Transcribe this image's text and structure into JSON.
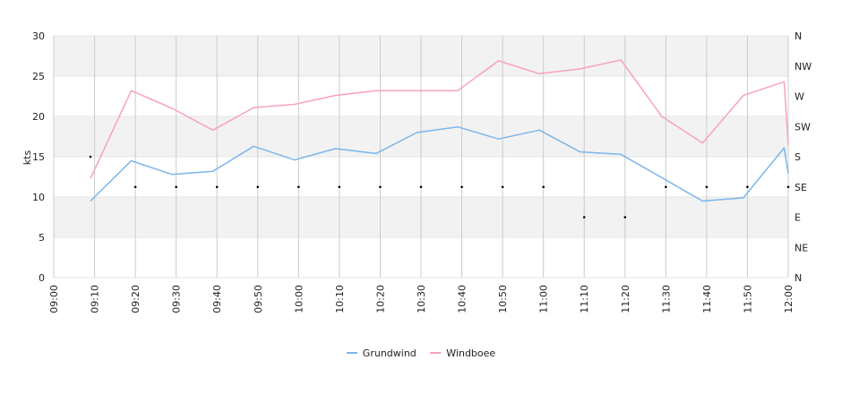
{
  "chart_data": {
    "type": "line",
    "ylabel": "kts",
    "ylim": [
      0,
      30
    ],
    "y_ticks": [
      "0",
      "5",
      "10",
      "15",
      "20",
      "25",
      "30"
    ],
    "right_axis_labels": [
      "N",
      "NE",
      "E",
      "SE",
      "S",
      "SW",
      "W",
      "NW",
      "N"
    ],
    "x_tick_labels": [
      "09:00",
      "09:10",
      "09:20",
      "09:30",
      "09:40",
      "09:50",
      "10:00",
      "10:10",
      "10:20",
      "10:30",
      "10:40",
      "10:50",
      "11:00",
      "11:10",
      "11:20",
      "11:30",
      "11:40",
      "11:50",
      "12:00"
    ],
    "grid": true,
    "legend_position": "bottom",
    "colors": {
      "Grundwind": "#7cb5ec",
      "Windboee": "#f7a1c4",
      "direction": "#000000",
      "band": "#f2f2f2",
      "grid": "#cccccc"
    },
    "series": [
      {
        "name": "Grundwind",
        "x": [
          "09:09",
          "09:19",
          "09:29",
          "09:39",
          "09:49",
          "09:59",
          "10:09",
          "10:19",
          "10:29",
          "10:39",
          "10:49",
          "10:59",
          "11:09",
          "11:19",
          "11:29",
          "11:39",
          "11:49",
          "11:59",
          "12:00"
        ],
        "values": [
          9.5,
          14.5,
          12.8,
          13.2,
          16.3,
          14.6,
          16.0,
          15.4,
          18.0,
          18.7,
          17.2,
          18.3,
          15.6,
          15.3,
          12.4,
          9.5,
          9.9,
          16.1,
          12.9
        ]
      },
      {
        "name": "Windboee",
        "x": [
          "09:09",
          "09:19",
          "09:29",
          "09:39",
          "09:49",
          "09:59",
          "10:09",
          "10:19",
          "10:29",
          "10:39",
          "10:49",
          "10:59",
          "11:09",
          "11:19",
          "11:29",
          "11:39",
          "11:49",
          "11:59",
          "12:00"
        ],
        "values": [
          12.3,
          23.2,
          21.0,
          18.3,
          21.1,
          21.5,
          22.6,
          23.2,
          23.2,
          23.2,
          26.9,
          25.3,
          25.9,
          27.0,
          20.0,
          16.7,
          22.6,
          24.3,
          16.5
        ]
      },
      {
        "name": "",
        "type": "scatter",
        "x": [
          "09:09",
          "09:20",
          "09:30",
          "09:40",
          "09:50",
          "10:00",
          "10:10",
          "10:20",
          "10:30",
          "10:40",
          "10:50",
          "11:00",
          "11:10",
          "11:20",
          "11:30",
          "11:40",
          "11:50",
          "12:00"
        ],
        "values": [
          "S",
          "SE",
          "SE",
          "SE",
          "SE",
          "SE",
          "SE",
          "SE",
          "SE",
          "SE",
          "SE",
          "SE",
          "E",
          "E",
          "SE",
          "SE",
          "SE",
          "SE"
        ]
      }
    ]
  }
}
